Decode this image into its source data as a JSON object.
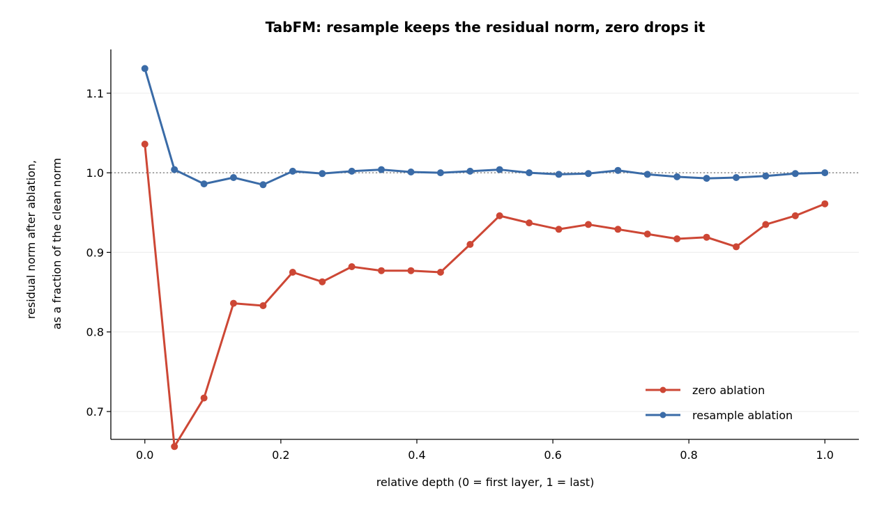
{
  "chart_data": {
    "type": "line",
    "title": "TabFM: resample keeps the residual norm, zero drops it",
    "xlabel": "relative depth (0 = first layer, 1 = last)",
    "ylabel_lines": [
      "residual norm after ablation,",
      "as a fraction of the clean norm"
    ],
    "xlim": [
      -0.05,
      1.05
    ],
    "ylim": [
      0.665,
      1.155
    ],
    "xticks": [
      0.0,
      0.2,
      0.4,
      0.6,
      0.8,
      1.0
    ],
    "xtick_labels": [
      "0.0",
      "0.2",
      "0.4",
      "0.6",
      "0.8",
      "1.0"
    ],
    "yticks": [
      0.7,
      0.8,
      0.9,
      1.0,
      1.1
    ],
    "ytick_labels": [
      "0.7",
      "0.8",
      "0.9",
      "1.0",
      "1.1"
    ],
    "grid": "horizontal",
    "reference_line": 1.0,
    "legend_position": "lower-right",
    "x": [
      0.0,
      0.0435,
      0.087,
      0.1304,
      0.1739,
      0.2174,
      0.2609,
      0.3043,
      0.3478,
      0.3913,
      0.4348,
      0.4783,
      0.5217,
      0.5652,
      0.6087,
      0.6522,
      0.6957,
      0.7391,
      0.7826,
      0.8261,
      0.8696,
      0.913,
      0.9565,
      1.0
    ],
    "series": [
      {
        "name": "zero ablation",
        "color": "#cd4735",
        "values": [
          1.036,
          0.656,
          0.717,
          0.836,
          0.833,
          0.875,
          0.863,
          0.882,
          0.877,
          0.877,
          0.875,
          0.91,
          0.946,
          0.937,
          0.929,
          0.935,
          0.929,
          0.923,
          0.917,
          0.919,
          0.907,
          0.935,
          0.946,
          0.961
        ]
      },
      {
        "name": "resample ablation",
        "color": "#3a6ba7",
        "values": [
          1.131,
          1.004,
          0.986,
          0.994,
          0.985,
          1.002,
          0.999,
          1.002,
          1.004,
          1.001,
          1.0,
          1.002,
          1.004,
          1.0,
          0.998,
          0.999,
          1.003,
          0.998,
          0.995,
          0.993,
          0.994,
          0.996,
          0.999,
          1.0
        ]
      }
    ]
  }
}
